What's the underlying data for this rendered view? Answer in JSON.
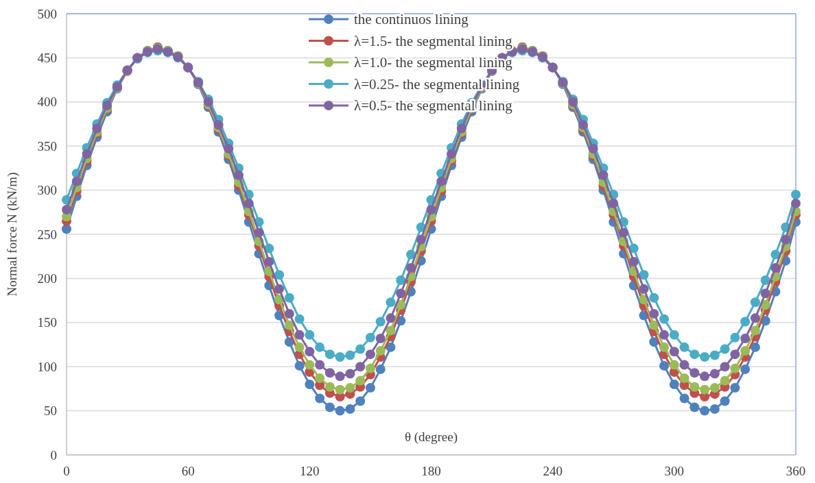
{
  "chart_data": {
    "type": "line",
    "xlabel": "θ (degree)",
    "ylabel": "Normal force N (kN/m)",
    "x": [
      0,
      5,
      10,
      15,
      20,
      25,
      30,
      35,
      40,
      45,
      50,
      55,
      60,
      65,
      70,
      75,
      80,
      85,
      90,
      95,
      100,
      105,
      110,
      115,
      120,
      125,
      130,
      135,
      140,
      145,
      150,
      155,
      160,
      165,
      170,
      175,
      180,
      185,
      190,
      195,
      200,
      205,
      210,
      215,
      220,
      225,
      230,
      235,
      240,
      245,
      250,
      255,
      260,
      265,
      270,
      275,
      280,
      285,
      290,
      295,
      300,
      305,
      310,
      315,
      320,
      325,
      330,
      335,
      340,
      345,
      350,
      355,
      360
    ],
    "xlim": [
      0,
      360
    ],
    "xticks": [
      0,
      60,
      120,
      180,
      240,
      300,
      360
    ],
    "ylim": [
      0,
      500
    ],
    "yticks": [
      0,
      50,
      100,
      150,
      200,
      250,
      300,
      350,
      400,
      450,
      500
    ],
    "grid": "y",
    "legend": "top",
    "marker": "circle",
    "line_style": "solid",
    "series": [
      {
        "name": "the continuos lining",
        "color": "#4f81bd",
        "values": [
          256,
          293,
          328,
          360,
          389,
          415,
          435,
          450,
          458,
          462,
          458,
          452,
          439,
          420,
          394,
          366,
          335,
          300,
          264,
          228,
          192,
          158,
          128,
          101,
          80,
          64,
          54,
          50,
          52,
          61,
          76,
          97,
          122,
          152,
          185,
          220,
          256,
          293,
          328,
          360,
          389,
          415,
          435,
          450,
          458,
          462,
          458,
          452,
          439,
          420,
          394,
          366,
          335,
          300,
          264,
          228,
          192,
          158,
          128,
          101,
          80,
          64,
          54,
          50,
          52,
          61,
          76,
          97,
          122,
          152,
          185,
          220,
          264
        ]
      },
      {
        "name": "λ=1.5- the segmental lining",
        "color": "#c0504d",
        "values": [
          265,
          299,
          333,
          364,
          392,
          416,
          435,
          450,
          458,
          462,
          458,
          452,
          439,
          421,
          396,
          369,
          339,
          305,
          272,
          237,
          202,
          169,
          140,
          114,
          94,
          79,
          70,
          66,
          69,
          77,
          91,
          111,
          134,
          164,
          196,
          231,
          265,
          299,
          333,
          364,
          392,
          416,
          435,
          450,
          458,
          462,
          458,
          452,
          439,
          421,
          396,
          369,
          339,
          305,
          272,
          237,
          202,
          169,
          140,
          114,
          94,
          79,
          70,
          66,
          69,
          77,
          91,
          111,
          134,
          164,
          196,
          231,
          272
        ]
      },
      {
        "name": "λ=1.0- the segmental lining",
        "color": "#9bbb59",
        "values": [
          270,
          303,
          336,
          366,
          393,
          416,
          435,
          450,
          458,
          461,
          458,
          452,
          439,
          421,
          397,
          371,
          341,
          309,
          276,
          242,
          208,
          176,
          147,
          122,
          102,
          87,
          77,
          74,
          76,
          84,
          98,
          118,
          141,
          170,
          202,
          236,
          270,
          303,
          336,
          366,
          393,
          416,
          435,
          450,
          458,
          461,
          458,
          452,
          439,
          421,
          397,
          371,
          341,
          309,
          276,
          242,
          208,
          176,
          147,
          122,
          102,
          87,
          77,
          74,
          76,
          84,
          98,
          118,
          141,
          170,
          202,
          236,
          276
        ]
      },
      {
        "name": "λ=0.25- the segmental lining",
        "color": "#4bacc6",
        "values": [
          289,
          319,
          348,
          375,
          399,
          419,
          436,
          449,
          456,
          458,
          456,
          450,
          439,
          423,
          403,
          380,
          353,
          325,
          295,
          264,
          234,
          204,
          178,
          154,
          136,
          122,
          114,
          111,
          113,
          120,
          133,
          151,
          173,
          198,
          227,
          258,
          289,
          319,
          348,
          375,
          399,
          419,
          436,
          449,
          456,
          458,
          456,
          450,
          439,
          423,
          403,
          380,
          353,
          325,
          295,
          264,
          234,
          204,
          178,
          154,
          136,
          122,
          114,
          111,
          113,
          120,
          133,
          151,
          173,
          198,
          227,
          258,
          295
        ]
      },
      {
        "name": "λ=0.5- the segmental lining",
        "color": "#8064a2",
        "values": [
          278,
          310,
          341,
          370,
          396,
          417,
          436,
          450,
          457,
          460,
          457,
          451,
          439,
          422,
          400,
          374,
          347,
          317,
          285,
          252,
          219,
          188,
          160,
          136,
          117,
          102,
          93,
          89,
          92,
          100,
          114,
          132,
          155,
          183,
          212,
          244,
          278,
          310,
          341,
          370,
          396,
          417,
          436,
          450,
          457,
          460,
          457,
          451,
          439,
          422,
          400,
          374,
          347,
          317,
          285,
          252,
          219,
          188,
          160,
          136,
          117,
          102,
          93,
          89,
          92,
          100,
          114,
          132,
          155,
          183,
          212,
          244,
          285
        ]
      }
    ]
  }
}
